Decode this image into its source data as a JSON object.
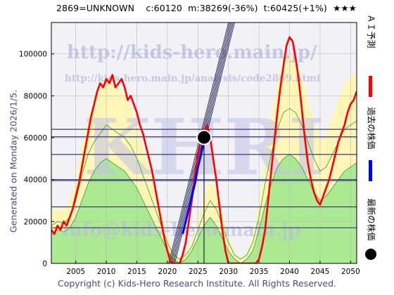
{
  "header": {
    "code": "2869=UNKNOWN",
    "current": "c:60120",
    "mid": "m:38269(-36%)",
    "target": "t:60425(+1%)",
    "stars": "★★★"
  },
  "generated": "Generated on Monday 2026/1/5.",
  "footer": "Copyright (c) Kids-Hero Research Institute. All Rights Reserved.",
  "watermark": {
    "url": "http://kids-hero.main.jp/",
    "path": "http://kids-hero.main.jp/analysis/code2869.html",
    "big": "KHRI",
    "email": "info@kids-hero.main.jp"
  },
  "legend": [
    {
      "label": "ＡＩ予測",
      "color": "#ff0000",
      "type": "bar"
    },
    {
      "label": "過去の株価",
      "color": "#0000ff",
      "type": "bar"
    },
    {
      "label": "最新の株価",
      "color": "#000000",
      "type": "dot"
    }
  ],
  "colors": {
    "prediction": "#ff0000",
    "past": "#0000ff",
    "latest": "#000000",
    "green_fill": "#a8e890",
    "green_line": "#2e9e2e",
    "yellow_fill": "#fff6b0",
    "hline": "#3a3a7a",
    "grid": "#bbbbbb"
  },
  "chart_data": {
    "type": "line",
    "xlim": [
      2001,
      2051
    ],
    "ylim": [
      0,
      115000
    ],
    "x_ticks": [
      2005,
      2010,
      2015,
      2020,
      2025,
      2030,
      2035,
      2040,
      2045,
      2050
    ],
    "y_ticks": [
      0,
      20000,
      40000,
      60000,
      80000,
      100000
    ],
    "x_tick_labels": [
      "2005",
      "2010",
      "2015",
      "2020",
      "2025",
      "2030",
      "2035",
      "2040",
      "2045",
      "2050"
    ],
    "y_tick_labels": [
      "0",
      "20000",
      "40000",
      "60000",
      "80000",
      "100000"
    ],
    "grid": true,
    "horizontal_levels": [
      17000,
      27000,
      39500,
      40000,
      52000,
      60425,
      64000
    ],
    "latest_point": {
      "x": 2026.0,
      "y": 60120
    },
    "latest_vline": {
      "x": 2026.0,
      "from": 0,
      "to": 60120
    },
    "trend_lines": [
      {
        "x1": 2020.2,
        "y1": 0,
        "x2": 2030.0,
        "y2": 115000
      },
      {
        "x1": 2020.4,
        "y1": 0,
        "x2": 2030.2,
        "y2": 115000
      },
      {
        "x1": 2020.6,
        "y1": 0,
        "x2": 2030.4,
        "y2": 115000
      },
      {
        "x1": 2020.8,
        "y1": 0,
        "x2": 2030.6,
        "y2": 115000
      },
      {
        "x1": 2021.0,
        "y1": 0,
        "x2": 2030.8,
        "y2": 115000
      },
      {
        "x1": 2021.2,
        "y1": 0,
        "x2": 2031.0,
        "y2": 115000
      }
    ],
    "series": [
      {
        "name": "ＡＩ予測",
        "x": [
          2001,
          2001.5,
          2002,
          2002.5,
          2003,
          2003.5,
          2004,
          2004.5,
          2005,
          2005.5,
          2006,
          2006.5,
          2007,
          2007.5,
          2008,
          2008.5,
          2009,
          2009.5,
          2010,
          2010.5,
          2011,
          2011.5,
          2012,
          2012.5,
          2013,
          2013.5,
          2014,
          2014.5,
          2015,
          2015.5,
          2016,
          2016.5,
          2017,
          2017.5,
          2018,
          2018.5,
          2019,
          2019.5,
          2020,
          2020.5,
          2021,
          2021.5,
          2022,
          2022.5,
          2023,
          2023.5,
          2024,
          2024.5,
          2025,
          2025.5,
          2026,
          2026.5,
          2027,
          2027.5,
          2028,
          2028.5,
          2029,
          2029.5,
          2030,
          2030.5,
          2031,
          2031.5,
          2032,
          2032.5,
          2033,
          2033.5,
          2034,
          2034.5,
          2035,
          2035.5,
          2036,
          2036.5,
          2037,
          2037.5,
          2038,
          2038.5,
          2039,
          2039.5,
          2040,
          2040.5,
          2041,
          2041.5,
          2042,
          2042.5,
          2043,
          2043.5,
          2044,
          2044.5,
          2045,
          2045.5,
          2046,
          2046.5,
          2047,
          2047.5,
          2048,
          2048.5,
          2049,
          2049.5,
          2050,
          2050.5,
          2051
        ],
        "y": [
          16000,
          14000,
          18000,
          16000,
          20000,
          18000,
          22000,
          26000,
          32000,
          38000,
          46000,
          54000,
          62000,
          70000,
          76000,
          82000,
          86000,
          84000,
          88000,
          86000,
          90000,
          84000,
          86000,
          88000,
          84000,
          78000,
          80000,
          76000,
          72000,
          66000,
          62000,
          56000,
          50000,
          44000,
          36000,
          28000,
          20000,
          12000,
          6000,
          1000,
          0,
          0,
          0,
          4000,
          10000,
          20000,
          30000,
          42000,
          52000,
          58000,
          62000,
          66000,
          60000,
          50000,
          40000,
          28000,
          16000,
          6000,
          0,
          0,
          0,
          0,
          0,
          0,
          0,
          0,
          0,
          0,
          2000,
          8000,
          16000,
          30000,
          44000,
          58000,
          72000,
          84000,
          94000,
          104000,
          108000,
          106000,
          98000,
          88000,
          74000,
          60000,
          48000,
          40000,
          34000,
          30000,
          28000,
          32000,
          36000,
          40000,
          46000,
          52000,
          58000,
          62000,
          66000,
          72000,
          76000,
          78000,
          82000
        ]
      },
      {
        "name": "過去の株価",
        "x": [
          2022.5,
          2023,
          2023.5,
          2024,
          2024.5,
          2025,
          2025.5,
          2026
        ],
        "y": [
          14000,
          20000,
          26000,
          32000,
          38000,
          46000,
          52000,
          60120
        ]
      }
    ],
    "green_lines": [
      {
        "x": [
          2001,
          2002,
          2003,
          2004,
          2005,
          2006,
          2007,
          2008,
          2009,
          2010,
          2011,
          2012,
          2013,
          2014,
          2015,
          2016,
          2017,
          2018,
          2019,
          2020,
          2021,
          2022,
          2023,
          2024,
          2025,
          2026,
          2027,
          2028,
          2029,
          2030,
          2031,
          2032,
          2033,
          2034,
          2035,
          2036,
          2037,
          2038,
          2039,
          2040,
          2041,
          2042,
          2043,
          2044,
          2045,
          2046,
          2047,
          2048,
          2049,
          2050,
          2051
        ],
        "y": [
          18000,
          20000,
          19000,
          22000,
          30000,
          42000,
          52000,
          58000,
          62000,
          66000,
          64000,
          62000,
          60000,
          56000,
          50000,
          42000,
          34000,
          26000,
          18000,
          10000,
          4000,
          2000,
          4000,
          8000,
          16000,
          24000,
          30000,
          26000,
          18000,
          10000,
          4000,
          2000,
          4000,
          10000,
          22000,
          38000,
          52000,
          64000,
          72000,
          74000,
          72000,
          66000,
          58000,
          50000,
          44000,
          46000,
          52000,
          58000,
          64000,
          66000,
          68000
        ]
      },
      {
        "x": [
          2001,
          2002,
          2003,
          2004,
          2005,
          2006,
          2007,
          2008,
          2009,
          2010,
          2011,
          2012,
          2013,
          2014,
          2015,
          2016,
          2017,
          2018,
          2019,
          2020,
          2021,
          2022,
          2023,
          2024,
          2025,
          2026,
          2027,
          2028,
          2029,
          2030,
          2031,
          2032,
          2033,
          2034,
          2035,
          2036,
          2037,
          2038,
          2039,
          2040,
          2041,
          2042,
          2043,
          2044,
          2045,
          2046,
          2047,
          2048,
          2049,
          2050,
          2051
        ],
        "y": [
          14000,
          16000,
          15000,
          17000,
          22000,
          30000,
          38000,
          44000,
          48000,
          50000,
          48000,
          46000,
          44000,
          40000,
          36000,
          30000,
          24000,
          18000,
          12000,
          6000,
          2000,
          0,
          2000,
          6000,
          12000,
          18000,
          22000,
          18000,
          12000,
          6000,
          2000,
          0,
          2000,
          6000,
          16000,
          28000,
          38000,
          46000,
          50000,
          52000,
          50000,
          46000,
          40000,
          34000,
          30000,
          32000,
          36000,
          40000,
          44000,
          46000,
          48000
        ]
      }
    ]
  }
}
